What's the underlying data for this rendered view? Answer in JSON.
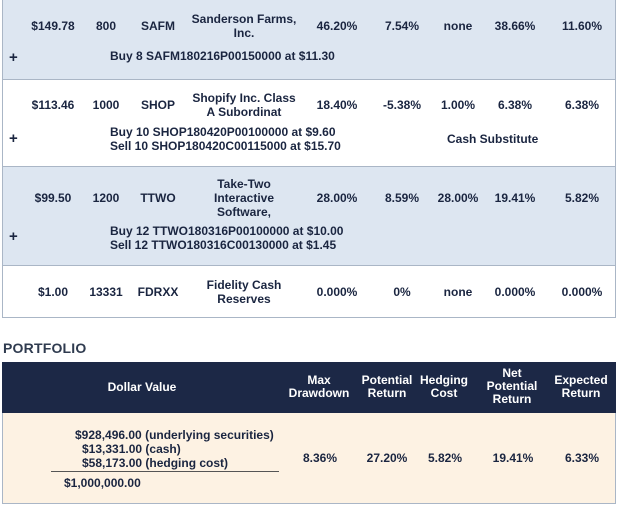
{
  "positions": [
    {
      "price": "$149.78",
      "shares": "800",
      "ticker": "SAFM",
      "name_l1": "Sanderson Farms,",
      "name_l2": "Inc.",
      "name_l3": "",
      "c1": "46.20%",
      "c2": "7.54%",
      "c3": "none",
      "c4": "38.66%",
      "c5": "11.60%",
      "hedge_l1": "Buy 8 SAFM180216P00150000 at $11.30",
      "hedge_l2": "",
      "note": ""
    },
    {
      "price": "$113.46",
      "shares": "1000",
      "ticker": "SHOP",
      "name_l1": "Shopify Inc. Class",
      "name_l2": "A Subordinat",
      "name_l3": "",
      "c1": "18.40%",
      "c2": "-5.38%",
      "c3": "1.00%",
      "c4": "6.38%",
      "c5": "6.38%",
      "hedge_l1": "Buy 10 SHOP180420P00100000 at $9.60",
      "hedge_l2": "Sell 10 SHOP180420C00115000 at $15.70",
      "note": "Cash Substitute"
    },
    {
      "price": "$99.50",
      "shares": "1200",
      "ticker": "TTWO",
      "name_l1": "Take-Two",
      "name_l2": "Interactive",
      "name_l3": "Software,",
      "c1": "28.00%",
      "c2": "8.59%",
      "c3": "28.00%",
      "c4": "19.41%",
      "c5": "5.82%",
      "hedge_l1": "Buy 12 TTWO180316P00100000 at $10.00",
      "hedge_l2": "Sell 12 TTWO180316C00130000 at $1.45",
      "note": ""
    },
    {
      "price": "$1.00",
      "shares": "13331",
      "ticker": "FDRXX",
      "name_l1": "Fidelity Cash",
      "name_l2": "Reserves",
      "name_l3": "",
      "c1": "0.000%",
      "c2": "0%",
      "c3": "none",
      "c4": "0.000%",
      "c5": "0.000%",
      "hedge_l1": "",
      "hedge_l2": "",
      "note": ""
    }
  ],
  "expand_symbol": "+",
  "portfolio": {
    "title": "PORTFOLIO",
    "headers": {
      "dollar_value": "Dollar Value",
      "max_drawdown_l1": "Max",
      "max_drawdown_l2": "Drawdown",
      "potential_return_l1": "Potential",
      "potential_return_l2": "Return",
      "hedging_cost_l1": "Hedging",
      "hedging_cost_l2": "Cost",
      "net_potential_l1": "Net",
      "net_potential_l2": "Potential",
      "net_potential_l3": "Return",
      "expected_return_l1": "Expected",
      "expected_return_l2": "Return"
    },
    "values": {
      "underlying": "$928,496.00 (underlying securities)",
      "cash": "$13,331.00 (cash)",
      "hedging": "$58,173.00 (hedging cost)",
      "total": "$1,000,000.00",
      "max_drawdown": "8.36%",
      "potential_return": "27.20%",
      "hedging_cost": "5.82%",
      "net_potential_return": "19.41%",
      "expected_return": "6.33%"
    }
  },
  "colors": {
    "row_blue": "#dde6f1",
    "header_navy": "#1c2846",
    "portfolio_row": "#fdf2e3"
  }
}
